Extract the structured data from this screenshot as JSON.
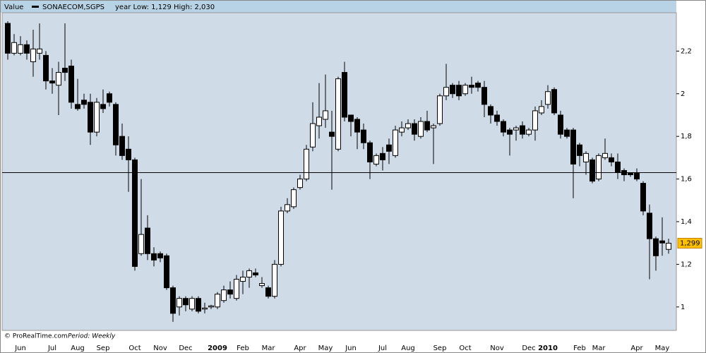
{
  "chart_data": {
    "type": "candlestick",
    "header_label": "Value",
    "series_name": "SONAECOM,SGPS",
    "subtitle": "year Low: 1,129 High: 2,030",
    "source": "© ProRealTime.com",
    "period": "Period: Weekly",
    "categories": [
      null,
      null,
      "Jun",
      null,
      null,
      null,
      null,
      "Jul",
      null,
      null,
      null,
      "Aug",
      null,
      null,
      null,
      "Sep",
      null,
      null,
      null,
      null,
      "Oct",
      null,
      null,
      null,
      "Nov",
      null,
      null,
      null,
      "Dec",
      null,
      null,
      null,
      null,
      "2009",
      null,
      null,
      null,
      "Feb",
      null,
      null,
      null,
      "Mar",
      null,
      null,
      null,
      null,
      "Apr",
      null,
      null,
      null,
      "May",
      null,
      null,
      null,
      "Jun",
      null,
      null,
      null,
      null,
      "Jul",
      null,
      null,
      null,
      "Aug",
      null,
      null,
      null,
      null,
      "Sep",
      null,
      null,
      null,
      "Oct",
      null,
      null,
      null,
      null,
      "Nov",
      null,
      null,
      null,
      null,
      "Dec",
      null,
      null,
      "2010",
      null,
      null,
      null,
      null,
      "Feb",
      null,
      null,
      "Mar",
      null,
      null,
      null,
      null,
      null,
      "Apr",
      null,
      null,
      null,
      "May",
      null
    ],
    "open": [
      2.33,
      2.19,
      2.19,
      2.23,
      2.15,
      2.19,
      2.18,
      2.06,
      2.04,
      2.12,
      2.13,
      1.95,
      1.97,
      1.96,
      1.82,
      1.95,
      2.0,
      1.95,
      1.8,
      1.74,
      1.69,
      1.25,
      1.37,
      1.25,
      1.25,
      1.24,
      1.09,
      1.0,
      1.04,
      0.99,
      1.04,
      0.99,
      1.0,
      1.0,
      1.03,
      1.08,
      1.04,
      1.12,
      1.14,
      1.16,
      1.1,
      1.09,
      1.05,
      1.2,
      1.45,
      1.47,
      1.56,
      1.6,
      1.75,
      1.85,
      1.88,
      1.82,
      1.74,
      2.1,
      1.9,
      1.88,
      1.83,
      1.77,
      1.67,
      1.72,
      1.76,
      1.71,
      1.82,
      1.84,
      1.86,
      1.8,
      1.87,
      1.84,
      1.86,
      1.99,
      2.04,
      2.04,
      2.0,
      2.04,
      2.05,
      2.03,
      1.94,
      1.9,
      1.87,
      1.83,
      1.83,
      1.85,
      1.81,
      1.83,
      1.91,
      1.95,
      2.02,
      1.9,
      1.83,
      1.83,
      1.76,
      1.68,
      1.69,
      1.6,
      1.7,
      1.7,
      1.68,
      1.64,
      1.63,
      1.63,
      1.58,
      1.44,
      1.32,
      1.31,
      1.27
    ],
    "high": [
      2.34,
      2.28,
      2.27,
      2.25,
      2.3,
      2.33,
      2.2,
      2.12,
      2.15,
      2.33,
      2.16,
      2.07,
      2.0,
      2.0,
      1.98,
      2.02,
      2.01,
      1.96,
      1.86,
      1.8,
      1.7,
      1.6,
      1.43,
      1.28,
      1.26,
      1.25,
      1.1,
      1.05,
      1.05,
      1.05,
      1.05,
      1.02,
      1.01,
      1.07,
      1.1,
      1.12,
      1.15,
      1.17,
      1.18,
      1.18,
      1.14,
      1.1,
      1.22,
      1.47,
      1.51,
      1.56,
      1.62,
      1.76,
      1.96,
      2.05,
      2.09,
      1.92,
      2.08,
      2.15,
      1.9,
      1.89,
      1.86,
      1.78,
      1.72,
      1.75,
      1.79,
      1.85,
      1.87,
      1.88,
      1.88,
      1.89,
      1.92,
      1.86,
      2.0,
      2.14,
      2.05,
      2.06,
      2.05,
      2.08,
      2.06,
      2.06,
      1.95,
      1.92,
      1.88,
      1.84,
      1.85,
      1.87,
      1.84,
      1.94,
      1.97,
      2.04,
      2.03,
      1.92,
      1.84,
      1.84,
      1.77,
      1.73,
      1.7,
      1.72,
      1.79,
      1.72,
      1.72,
      1.65,
      1.63,
      1.65,
      1.59,
      1.48,
      1.33,
      1.42,
      1.32
    ],
    "low": [
      2.16,
      2.18,
      2.18,
      2.16,
      2.08,
      2.16,
      2.02,
      2.0,
      1.9,
      2.06,
      1.93,
      1.92,
      1.93,
      1.76,
      1.8,
      1.91,
      1.94,
      1.71,
      1.69,
      1.54,
      1.17,
      1.24,
      1.22,
      1.19,
      1.21,
      1.08,
      0.93,
      0.96,
      0.98,
      0.98,
      0.97,
      0.97,
      0.99,
      0.99,
      1.02,
      1.04,
      1.03,
      1.06,
      1.09,
      1.14,
      1.09,
      1.04,
      1.04,
      1.19,
      1.44,
      1.46,
      1.55,
      1.59,
      1.73,
      1.79,
      1.84,
      1.55,
      1.73,
      1.87,
      1.8,
      1.74,
      1.74,
      1.6,
      1.66,
      1.64,
      1.67,
      1.7,
      1.8,
      1.83,
      1.78,
      1.79,
      1.82,
      1.67,
      1.85,
      1.97,
      1.98,
      1.97,
      1.99,
      2.0,
      2.01,
      1.89,
      1.86,
      1.85,
      1.8,
      1.71,
      1.78,
      1.79,
      1.8,
      1.78,
      1.9,
      1.93,
      1.9,
      1.79,
      1.79,
      1.51,
      1.66,
      1.62,
      1.58,
      1.59,
      1.69,
      1.66,
      1.6,
      1.59,
      1.61,
      1.59,
      1.43,
      1.13,
      1.17,
      1.24,
      1.25
    ],
    "close": [
      2.19,
      2.24,
      2.23,
      2.19,
      2.21,
      2.21,
      2.06,
      2.05,
      2.1,
      2.1,
      1.96,
      1.93,
      1.95,
      1.82,
      1.96,
      1.93,
      1.96,
      1.76,
      1.71,
      1.69,
      1.19,
      1.34,
      1.25,
      1.22,
      1.23,
      1.09,
      0.97,
      1.04,
      1.01,
      1.04,
      0.98,
      0.995,
      1.005,
      1.06,
      1.08,
      1.06,
      1.13,
      1.14,
      1.17,
      1.15,
      1.11,
      1.05,
      1.2,
      1.45,
      1.48,
      1.55,
      1.6,
      1.74,
      1.86,
      1.89,
      1.92,
      1.8,
      2.07,
      1.89,
      1.87,
      1.82,
      1.77,
      1.68,
      1.71,
      1.69,
      1.73,
      1.83,
      1.84,
      1.86,
      1.81,
      1.87,
      1.83,
      1.85,
      1.99,
      2.03,
      2.0,
      1.99,
      2.04,
      2.03,
      2.03,
      1.95,
      1.9,
      1.87,
      1.82,
      1.81,
      1.84,
      1.81,
      1.83,
      1.92,
      1.94,
      2.01,
      1.91,
      1.81,
      1.8,
      1.67,
      1.71,
      1.72,
      1.59,
      1.71,
      1.72,
      1.68,
      1.63,
      1.62,
      1.62,
      1.6,
      1.45,
      1.32,
      1.24,
      1.3,
      1.299
    ],
    "up_color": "#ffffff",
    "down_color": "#000000",
    "reference_line": 1.63,
    "last_price": {
      "value": 1.299,
      "label": "1,299"
    },
    "ylim": [
      0.89,
      2.38
    ],
    "yticks": [
      {
        "value": 1,
        "label": "1"
      },
      {
        "value": 1.2,
        "label": "1,2"
      },
      {
        "value": 1.4,
        "label": "1,4"
      },
      {
        "value": 1.6,
        "label": "1,6"
      },
      {
        "value": 1.8,
        "label": "1,8"
      },
      {
        "value": 2,
        "label": "2"
      },
      {
        "value": 2.2,
        "label": "2,2"
      }
    ]
  }
}
